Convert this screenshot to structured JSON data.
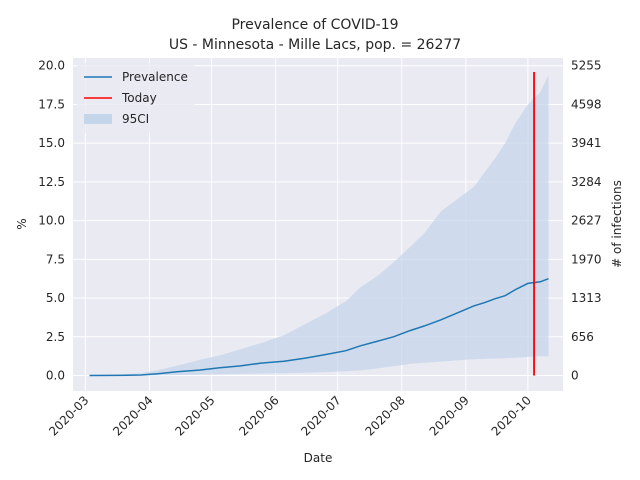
{
  "chart_data": {
    "type": "line",
    "title_line1": "Prevalence of COVID-19",
    "title_line2": "US - Minnesota - Mille Lacs, pop. = 26277",
    "xlabel": "Date",
    "ylabel": "%",
    "ylabel_right": "# of infections",
    "ylim": [
      -1.0,
      20.5
    ],
    "xlim": [
      "2020-02-24",
      "2020-10-18"
    ],
    "x_ticks": [
      "2020-03",
      "2020-04",
      "2020-05",
      "2020-06",
      "2020-07",
      "2020-08",
      "2020-09",
      "2020-10"
    ],
    "x_tick_dates": [
      "2020-03-01",
      "2020-04-01",
      "2020-05-01",
      "2020-06-01",
      "2020-07-01",
      "2020-08-01",
      "2020-09-01",
      "2020-10-01"
    ],
    "y_ticks": [
      "0.0",
      "2.5",
      "5.0",
      "7.5",
      "10.0",
      "12.5",
      "15.0",
      "17.5",
      "20.0"
    ],
    "y_tick_values": [
      0.0,
      2.5,
      5.0,
      7.5,
      10.0,
      12.5,
      15.0,
      17.5,
      20.0
    ],
    "y2_ticks": [
      "0",
      "656",
      "1313",
      "1970",
      "2627",
      "3284",
      "3941",
      "4598",
      "5255"
    ],
    "grid": true,
    "legend_position": "upper-left",
    "legend": [
      {
        "label": "Prevalence",
        "kind": "line",
        "color": "#1f77b4"
      },
      {
        "label": "Today",
        "kind": "line",
        "color": "#ff0000"
      },
      {
        "label": "95CI",
        "kind": "patch",
        "color": "#c6d6ea"
      }
    ],
    "today": {
      "date": "2020-10-04",
      "y_min": 0.0,
      "y_max": 19.6
    },
    "series": [
      {
        "name": "Prevalence",
        "color": "#1f77b4",
        "x": [
          "2020-03-03",
          "2020-03-15",
          "2020-03-28",
          "2020-04-05",
          "2020-04-15",
          "2020-04-25",
          "2020-05-05",
          "2020-05-15",
          "2020-05-25",
          "2020-06-05",
          "2020-06-15",
          "2020-06-25",
          "2020-07-05",
          "2020-07-12",
          "2020-07-20",
          "2020-07-28",
          "2020-08-05",
          "2020-08-12",
          "2020-08-20",
          "2020-08-28",
          "2020-09-05",
          "2020-09-10",
          "2020-09-15",
          "2020-09-20",
          "2020-09-25",
          "2020-10-01",
          "2020-10-07",
          "2020-10-11"
        ],
        "y": [
          0.0,
          0.01,
          0.03,
          0.12,
          0.25,
          0.35,
          0.5,
          0.62,
          0.8,
          0.92,
          1.12,
          1.35,
          1.6,
          1.92,
          2.2,
          2.5,
          2.9,
          3.2,
          3.6,
          4.05,
          4.5,
          4.7,
          4.95,
          5.15,
          5.55,
          5.95,
          6.05,
          6.25
        ]
      },
      {
        "name": "95CI",
        "color": "#c6d6ea",
        "x": [
          "2020-03-03",
          "2020-03-15",
          "2020-03-28",
          "2020-04-05",
          "2020-04-15",
          "2020-04-25",
          "2020-05-05",
          "2020-05-15",
          "2020-05-25",
          "2020-06-05",
          "2020-06-15",
          "2020-06-25",
          "2020-07-05",
          "2020-07-12",
          "2020-07-20",
          "2020-07-28",
          "2020-08-05",
          "2020-08-12",
          "2020-08-20",
          "2020-08-28",
          "2020-09-05",
          "2020-09-10",
          "2020-09-15",
          "2020-09-20",
          "2020-09-25",
          "2020-10-01",
          "2020-10-07",
          "2020-10-11"
        ],
        "lower": [
          0.0,
          0.0,
          0.0,
          0.01,
          0.03,
          0.05,
          0.08,
          0.1,
          0.13,
          0.15,
          0.18,
          0.22,
          0.28,
          0.33,
          0.45,
          0.6,
          0.75,
          0.82,
          0.9,
          0.98,
          1.05,
          1.08,
          1.1,
          1.12,
          1.15,
          1.2,
          1.25,
          1.25
        ],
        "upper": [
          0.0,
          0.05,
          0.15,
          0.35,
          0.65,
          1.0,
          1.3,
          1.7,
          2.1,
          2.6,
          3.3,
          4.0,
          4.8,
          5.7,
          6.4,
          7.3,
          8.3,
          9.2,
          10.6,
          11.4,
          12.2,
          13.1,
          14.0,
          15.0,
          16.3,
          17.5,
          18.3,
          19.4
        ]
      }
    ]
  }
}
